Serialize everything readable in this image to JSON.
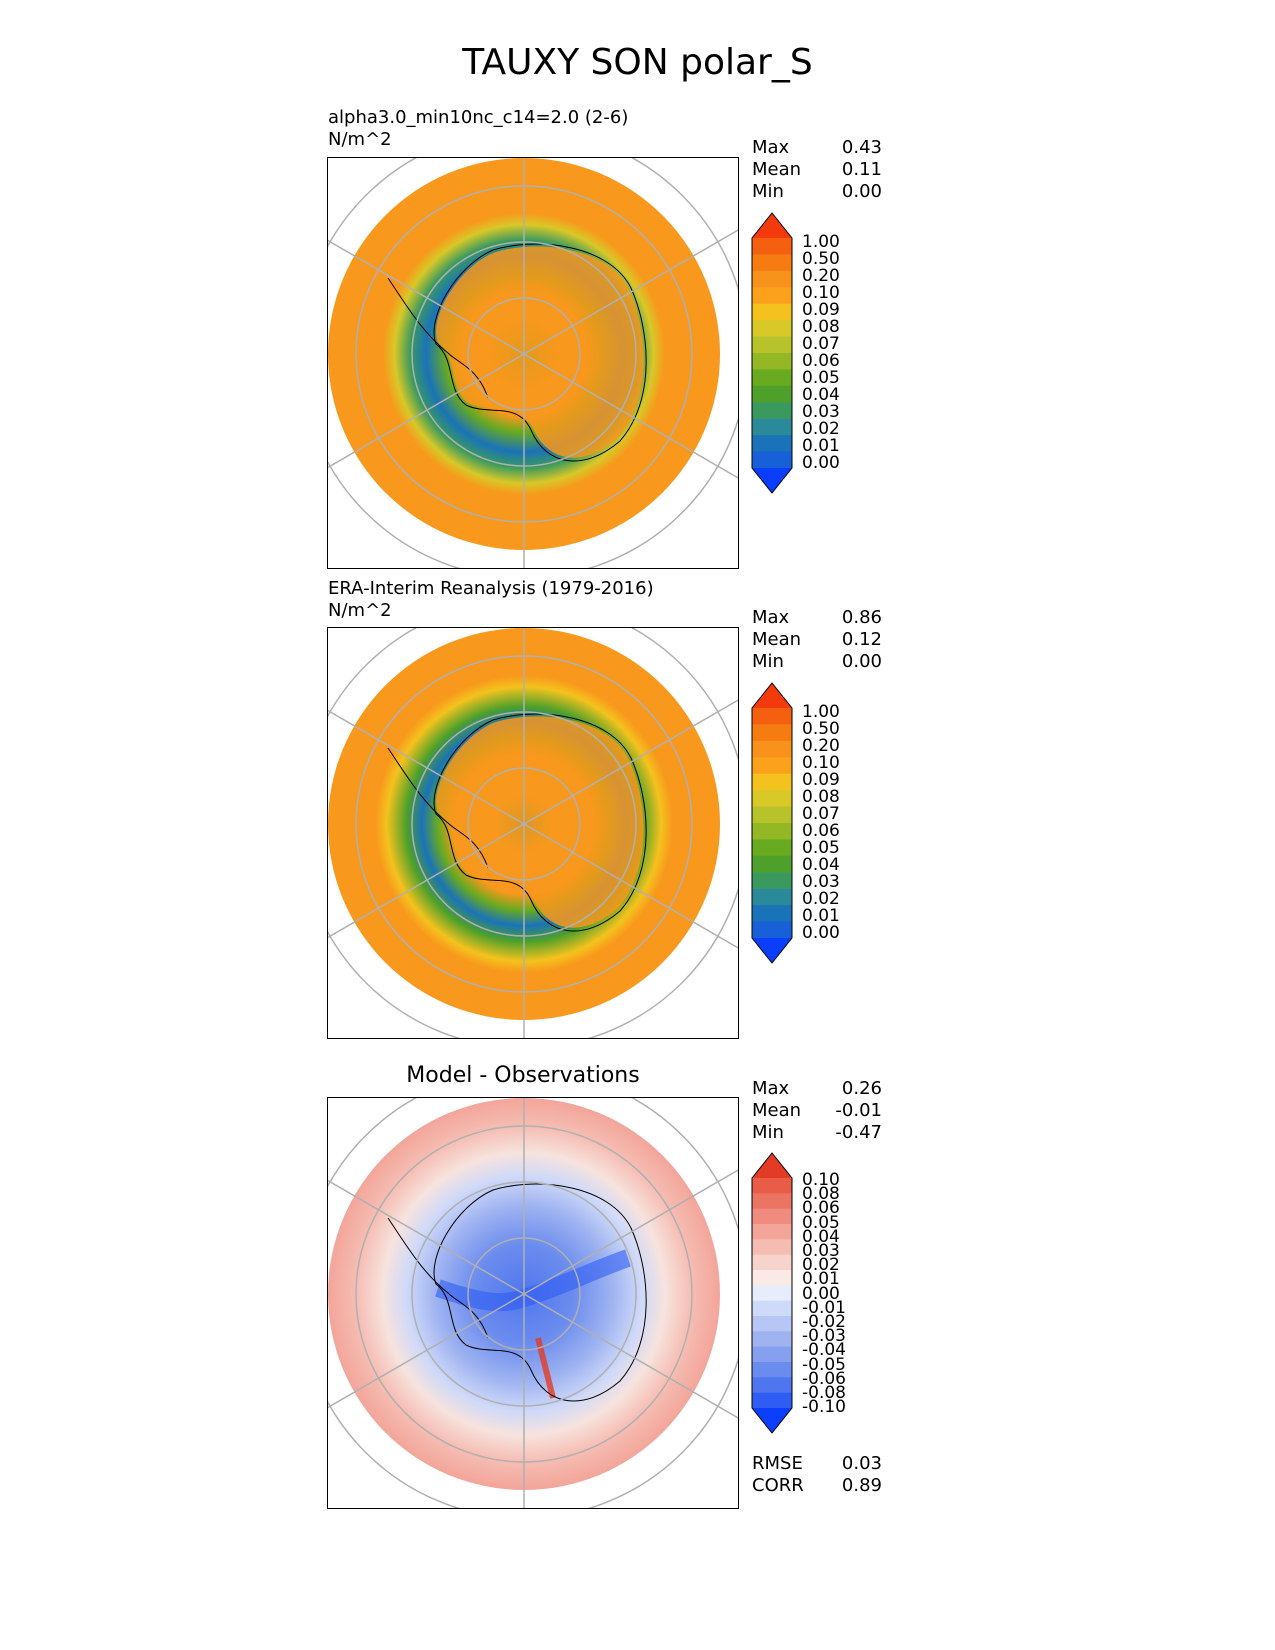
{
  "figure_title": "TAUXY SON polar_S",
  "panels": [
    {
      "title_line1": "alpha3.0_min10nc_c14=2.0 (2-6)",
      "title_line2": "N/m^2",
      "stats": [
        {
          "label": "Max",
          "value": "0.43"
        },
        {
          "label": "Mean",
          "value": "0.11"
        },
        {
          "label": "Min",
          "value": "0.00"
        }
      ],
      "colorbar_ticks": [
        "1.00",
        "0.50",
        "0.20",
        "0.10",
        "0.09",
        "0.08",
        "0.07",
        "0.06",
        "0.05",
        "0.04",
        "0.03",
        "0.02",
        "0.01",
        "0.00"
      ]
    },
    {
      "title_line1": "ERA-Interim Reanalysis (1979-2016)",
      "title_line2": "N/m^2",
      "stats": [
        {
          "label": "Max",
          "value": "0.86"
        },
        {
          "label": "Mean",
          "value": "0.12"
        },
        {
          "label": "Min",
          "value": "0.00"
        }
      ],
      "colorbar_ticks": [
        "1.00",
        "0.50",
        "0.20",
        "0.10",
        "0.09",
        "0.08",
        "0.07",
        "0.06",
        "0.05",
        "0.04",
        "0.03",
        "0.02",
        "0.01",
        "0.00"
      ]
    },
    {
      "title_line1": "Model - Observations",
      "stats": [
        {
          "label": "Max",
          "value": "0.26"
        },
        {
          "label": "Mean",
          "value": "-0.01"
        },
        {
          "label": "Min",
          "value": "-0.47"
        }
      ],
      "colorbar_ticks": [
        "0.10",
        "0.08",
        "0.06",
        "0.05",
        "0.04",
        "0.03",
        "0.02",
        "0.01",
        "0.00",
        "-0.01",
        "-0.02",
        "-0.03",
        "-0.04",
        "-0.05",
        "-0.06",
        "-0.08",
        "-0.10"
      ],
      "extra_stats": [
        {
          "label": "RMSE",
          "value": "0.03"
        },
        {
          "label": "CORR",
          "value": "0.89"
        }
      ]
    }
  ],
  "colors": {
    "abs_bar": [
      "#0a3dfc",
      "#1860d8",
      "#1a73b8",
      "#2a8a9a",
      "#3a9a5e",
      "#4ea02a",
      "#68aa20",
      "#94b825",
      "#b8c22a",
      "#d8c828",
      "#f4c21e",
      "#fba11c",
      "#f8921a",
      "#f67c12",
      "#f46010",
      "#f23a0c"
    ],
    "diff_bar": [
      "#0b3ffb",
      "#2f5cf3",
      "#4f76ee",
      "#6b8cee",
      "#879fef",
      "#9fb3f1",
      "#b7c6f4",
      "#cfd9f8",
      "#e7edfc",
      "#fbe9e6",
      "#f7d3cd",
      "#f5bcb2",
      "#f3a59a",
      "#ef8c7f",
      "#ec7463",
      "#e95c48",
      "#e33b26"
    ],
    "map_orange": "#f8981c",
    "map_grid": "#b0b0b0"
  },
  "chart_data": [
    {
      "type": "heatmap",
      "title": "alpha3.0_min10nc_c14=2.0 (2-6)",
      "units": "N/m^2",
      "max": 0.43,
      "mean": 0.11,
      "min": 0.0,
      "levels": [
        0.0,
        0.01,
        0.02,
        0.03,
        0.04,
        0.05,
        0.06,
        0.07,
        0.08,
        0.09,
        0.1,
        0.2,
        0.5,
        1.0
      ]
    },
    {
      "type": "heatmap",
      "title": "ERA-Interim Reanalysis (1979-2016)",
      "units": "N/m^2",
      "max": 0.86,
      "mean": 0.12,
      "min": 0.0,
      "levels": [
        0.0,
        0.01,
        0.02,
        0.03,
        0.04,
        0.05,
        0.06,
        0.07,
        0.08,
        0.09,
        0.1,
        0.2,
        0.5,
        1.0
      ]
    },
    {
      "type": "heatmap",
      "title": "Model - Observations",
      "max": 0.26,
      "mean": -0.01,
      "min": -0.47,
      "rmse": 0.03,
      "corr": 0.89,
      "levels": [
        -0.1,
        -0.08,
        -0.06,
        -0.05,
        -0.04,
        -0.03,
        -0.02,
        -0.01,
        0.0,
        0.01,
        0.02,
        0.03,
        0.04,
        0.05,
        0.06,
        0.08,
        0.1
      ]
    }
  ]
}
